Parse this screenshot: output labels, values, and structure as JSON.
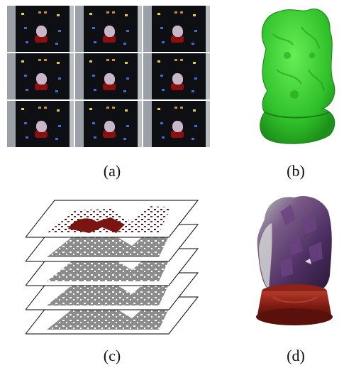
{
  "captions": {
    "a": "(a)",
    "b": "(b)",
    "c": "(c)",
    "d": "(d)"
  },
  "colors": {
    "background": "#ffffff",
    "model_green": "#3ad13a",
    "stand_red": "#8a1010",
    "mask_gray": "#8c8c8c",
    "amethyst": "#5a3a6e"
  },
  "panels": {
    "a_grid": {
      "rows": 3,
      "cols": 3
    },
    "c_layers": 5
  }
}
